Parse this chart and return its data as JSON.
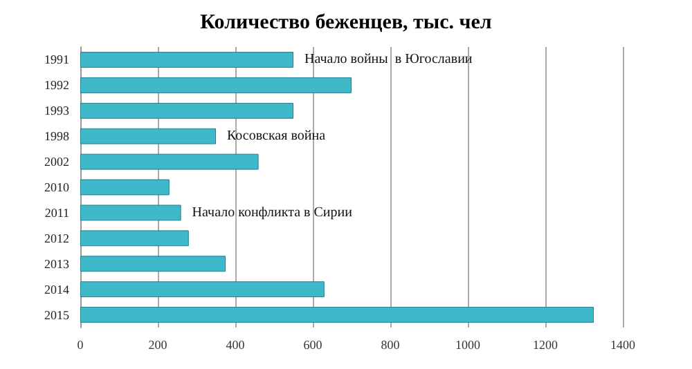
{
  "chart_data": {
    "type": "bar",
    "orientation": "horizontal",
    "title": "Количество беженцев, тыс. чел",
    "categories": [
      "1991",
      "1992",
      "1993",
      "1998",
      "2002",
      "2010",
      "2011",
      "2012",
      "2013",
      "2014",
      "2015"
    ],
    "values": [
      550,
      700,
      550,
      350,
      460,
      230,
      260,
      280,
      375,
      630,
      1325
    ],
    "color": "#3fb8c9",
    "xlim": [
      0,
      1400
    ],
    "xticks": [
      0,
      200,
      400,
      600,
      800,
      1000,
      1200,
      1400
    ],
    "grid": "x",
    "annotations": [
      {
        "text": "Начало войны  в Югославии",
        "x": 550,
        "y": "1991"
      },
      {
        "text": "Косовская война",
        "x": 350,
        "y": "1998"
      },
      {
        "text": "Начало конфликта в Сирии",
        "x": 260,
        "y": "2011"
      }
    ]
  }
}
